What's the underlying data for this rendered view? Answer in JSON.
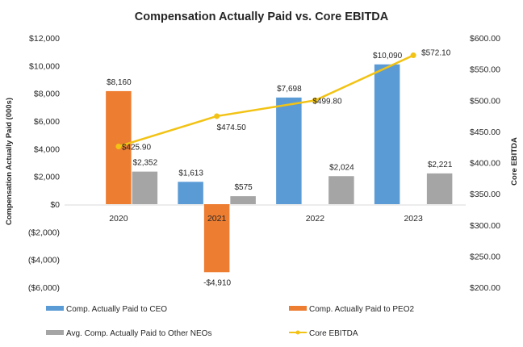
{
  "chart_data": {
    "type": "bar",
    "title": "Compensation Actually Paid vs. Core EBITDA",
    "categories": [
      "2020",
      "2021",
      "2022",
      "2023"
    ],
    "ylabel": "Compensation Actually Paid (000s)",
    "y2label": "Core EBITDA",
    "ylim": [
      -6000,
      12000
    ],
    "y2lim": [
      200,
      600
    ],
    "yticks": [
      "$12,000",
      "$10,000",
      "$8,000",
      "$6,000",
      "$4,000",
      "$2,000",
      "$0",
      "($2,000)",
      "($4,000)",
      "($6,000)"
    ],
    "y2ticks": [
      "$600.00",
      "$550.00",
      "$500.00",
      "$450.00",
      "$400.00",
      "$350.00",
      "$300.00",
      "$250.00",
      "$200.00"
    ],
    "grid": false,
    "legend_position": "bottom",
    "series": [
      {
        "name": "Comp. Actually Paid to CEO",
        "type": "bar",
        "axis": "left",
        "color": "#5B9BD5",
        "values": [
          null,
          1613,
          7698,
          10090
        ],
        "labels": [
          null,
          "$1,613",
          "$7,698",
          "$10,090"
        ]
      },
      {
        "name": "Comp. Actually Paid to PEO2",
        "type": "bar",
        "axis": "left",
        "color": "#ED7D31",
        "values": [
          8160,
          -4910,
          null,
          null
        ],
        "labels": [
          "$8,160",
          "-$4,910",
          null,
          null
        ]
      },
      {
        "name": "Avg. Comp. Actually Paid to Other NEOs",
        "type": "bar",
        "axis": "left",
        "color": "#A5A5A5",
        "values": [
          2352,
          575,
          2024,
          2221
        ],
        "labels": [
          "$2,352",
          "$575",
          "$2,024",
          "$2,221"
        ]
      },
      {
        "name": "Core EBITDA",
        "type": "line",
        "axis": "right",
        "color": "#F2C314",
        "values": [
          425.9,
          474.5,
          499.8,
          572.1
        ],
        "labels": [
          "$425.90",
          "$474.50",
          "$499.80",
          "$572.10"
        ]
      }
    ]
  }
}
